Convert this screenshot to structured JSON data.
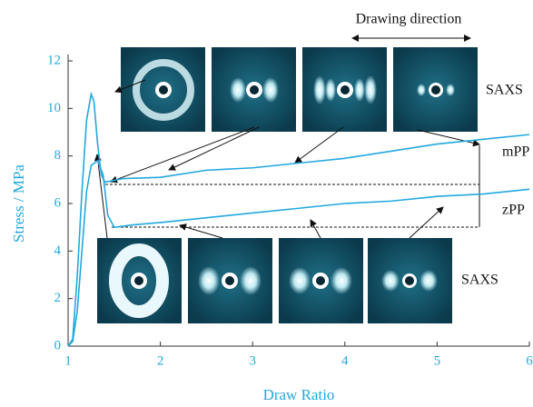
{
  "chart_data": {
    "type": "line",
    "annotations": [
      "Drawing direction",
      "SAXS",
      "SAXS"
    ],
    "xlabel": "Draw Ratio",
    "ylabel": "Stress / MPa",
    "xlim": [
      1,
      6
    ],
    "ylim": [
      0,
      12
    ],
    "xticks": [
      1,
      2,
      3,
      4,
      5,
      6
    ],
    "yticks": [
      0,
      2,
      4,
      6,
      8,
      10,
      12
    ],
    "series": [
      {
        "name": "mPP",
        "color": "#22a8e0",
        "x": [
          1,
          1.05,
          1.1,
          1.15,
          1.2,
          1.25,
          1.28,
          1.32,
          1.36,
          1.4,
          1.6,
          2,
          2.5,
          3,
          3.5,
          4,
          4.5,
          5,
          5.5,
          6
        ],
        "values": [
          0,
          0.3,
          3,
          6.5,
          9.5,
          10.6,
          10.3,
          8.5,
          7.2,
          6.9,
          7.05,
          7.1,
          7.4,
          7.5,
          7.7,
          7.9,
          8.2,
          8.5,
          8.7,
          8.9
        ]
      },
      {
        "name": "zPP",
        "color": "#22a8e0",
        "x": [
          1,
          1.05,
          1.1,
          1.15,
          1.2,
          1.25,
          1.32,
          1.38,
          1.43,
          1.5,
          1.7,
          2,
          2.5,
          3,
          3.5,
          4,
          4.5,
          5,
          5.5,
          6
        ],
        "values": [
          0,
          0.2,
          1.5,
          4,
          6.5,
          7.6,
          7.8,
          7.2,
          5.5,
          5.0,
          5.1,
          5.2,
          5.4,
          5.6,
          5.8,
          6.0,
          6.1,
          6.3,
          6.4,
          6.6
        ]
      }
    ]
  }
}
